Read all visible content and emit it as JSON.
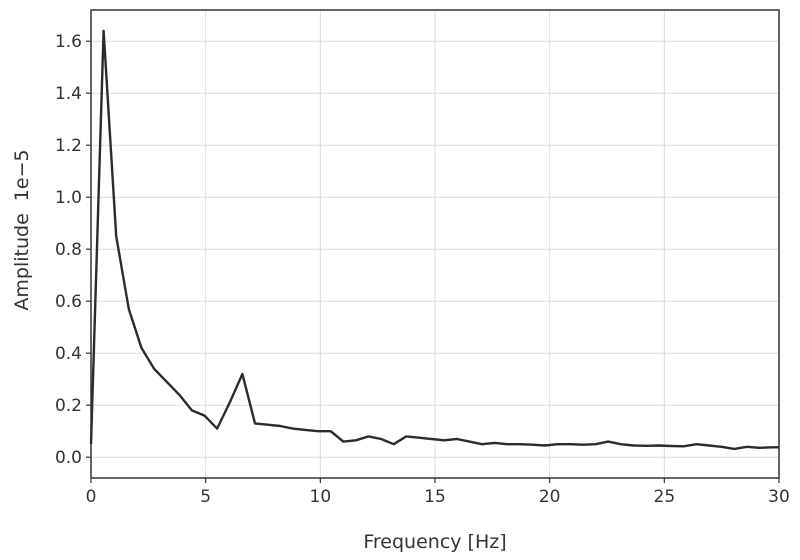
{
  "chart_data": {
    "type": "line",
    "xlabel": "Frequency [Hz]",
    "ylabel": "Amplitude",
    "y_offset_label": "1e−5",
    "xlim": [
      0,
      30
    ],
    "ylim": [
      -0.08,
      1.72
    ],
    "x_ticks": [
      0,
      5,
      10,
      15,
      20,
      25,
      30
    ],
    "x_tick_labels": [
      "0",
      "5",
      "10",
      "15",
      "20",
      "25",
      "30"
    ],
    "y_ticks": [
      0.0,
      0.2,
      0.4,
      0.6,
      0.8,
      1.0,
      1.2,
      1.4,
      1.6
    ],
    "y_tick_labels": [
      "0.0",
      "0.2",
      "0.4",
      "0.6",
      "0.8",
      "1.0",
      "1.2",
      "1.4",
      "1.6"
    ],
    "grid": true,
    "series": [
      {
        "color": "#2b2b2b",
        "x": [
          0.0,
          0.55,
          1.1,
          1.65,
          2.2,
          2.75,
          3.3,
          3.85,
          4.4,
          4.95,
          5.5,
          6.05,
          6.6,
          7.15,
          7.7,
          8.25,
          8.8,
          9.35,
          9.9,
          10.45,
          11.0,
          11.55,
          12.1,
          12.65,
          13.2,
          13.75,
          14.3,
          14.85,
          15.4,
          15.95,
          16.5,
          17.05,
          17.6,
          18.15,
          18.7,
          19.25,
          19.8,
          20.35,
          20.9,
          21.45,
          22.0,
          22.55,
          23.1,
          23.65,
          24.2,
          24.75,
          25.3,
          25.85,
          26.4,
          26.95,
          27.5,
          28.05,
          28.6,
          29.15,
          29.7,
          30.0
        ],
        "y": [
          0.05,
          1.64,
          0.85,
          0.57,
          0.42,
          0.34,
          0.29,
          0.24,
          0.18,
          0.16,
          0.11,
          0.21,
          0.32,
          0.13,
          0.125,
          0.12,
          0.11,
          0.105,
          0.1,
          0.1,
          0.06,
          0.065,
          0.08,
          0.07,
          0.05,
          0.08,
          0.075,
          0.07,
          0.065,
          0.07,
          0.06,
          0.05,
          0.055,
          0.05,
          0.05,
          0.048,
          0.045,
          0.05,
          0.05,
          0.048,
          0.05,
          0.06,
          0.05,
          0.045,
          0.044,
          0.045,
          0.043,
          0.042,
          0.05,
          0.045,
          0.04,
          0.032,
          0.04,
          0.036,
          0.038,
          0.038
        ]
      }
    ]
  }
}
